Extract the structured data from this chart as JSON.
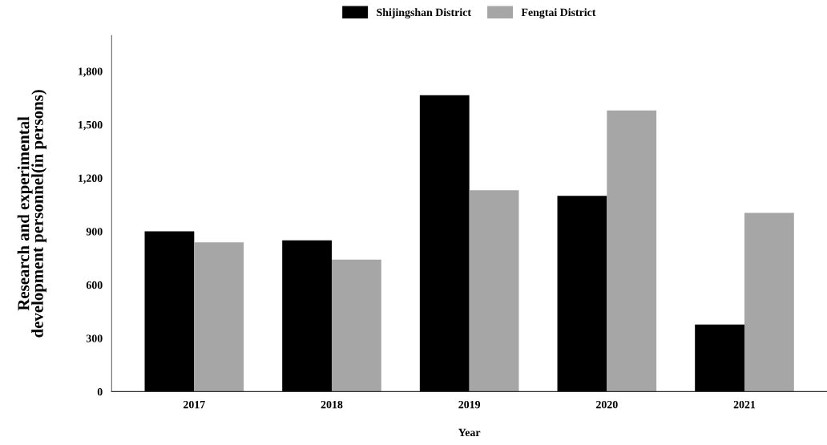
{
  "chart_data": {
    "type": "bar",
    "xlabel": "Year",
    "ylabel": "Research and experimental\ndevelopment personnel(in persons)",
    "categories": [
      "2017",
      "2018",
      "2019",
      "2020",
      "2021"
    ],
    "series": [
      {
        "name": "Shijingshan District",
        "color": "#000000",
        "values": [
          900,
          850,
          1665,
          1100,
          377
        ]
      },
      {
        "name": "Fengtai District",
        "color": "#a6a6a6",
        "values": [
          838,
          742,
          1131,
          1579,
          1004
        ]
      }
    ],
    "ylim": [
      0,
      2000
    ],
    "yticks": [
      {
        "value": 0,
        "label": "0"
      },
      {
        "value": 300,
        "label": "300"
      },
      {
        "value": 600,
        "label": "600"
      },
      {
        "value": 900,
        "label": "900"
      },
      {
        "value": 1200,
        "label": "1,200"
      },
      {
        "value": 1500,
        "label": "1,500"
      },
      {
        "value": 1800,
        "label": "1,800"
      }
    ],
    "legend": "top"
  }
}
